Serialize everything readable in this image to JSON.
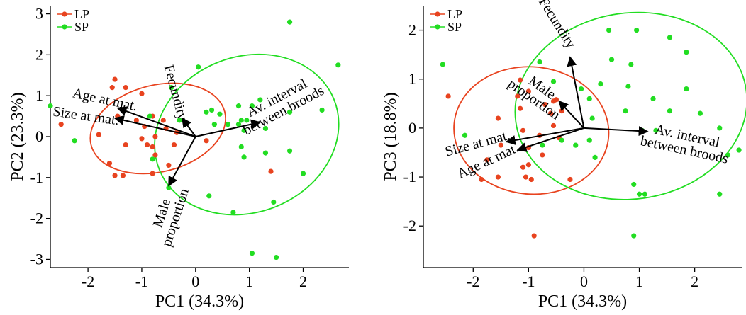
{
  "chart_data": [
    {
      "type": "scatter",
      "title": "",
      "xlabel": "PC1 (34.3%)",
      "ylabel": "PC2 (23.3%)",
      "xlim": [
        -2.7,
        2.85
      ],
      "ylim": [
        -3.2,
        3.2
      ],
      "xticks": [
        -2,
        -1,
        0,
        1,
        2
      ],
      "yticks": [
        -3,
        -2,
        -1,
        0,
        1,
        2,
        3
      ],
      "legend_position": "top-left",
      "series": [
        {
          "name": "LP",
          "color": "#e8431f",
          "points": [
            [
              -2.5,
              0.3
            ],
            [
              -1.5,
              1.4
            ],
            [
              -1.55,
              1.2
            ],
            [
              -1.3,
              1.2
            ],
            [
              -1.0,
              1.05
            ],
            [
              -0.8,
              0.5
            ],
            [
              -1.45,
              0.5
            ],
            [
              -1.1,
              0.4
            ],
            [
              -0.95,
              0.25
            ],
            [
              -1.8,
              0.05
            ],
            [
              -0.6,
              0.4
            ],
            [
              -0.55,
              0.2
            ],
            [
              -0.75,
              0.0
            ],
            [
              -1.0,
              -0.05
            ],
            [
              -0.9,
              -0.2
            ],
            [
              -1.3,
              -0.2
            ],
            [
              -0.8,
              -0.25
            ],
            [
              -0.4,
              -0.2
            ],
            [
              -0.35,
              0.1
            ],
            [
              0.2,
              -0.1
            ],
            [
              -0.5,
              -0.7
            ],
            [
              -1.5,
              -0.95
            ],
            [
              -1.35,
              -0.95
            ],
            [
              -0.8,
              -0.9
            ],
            [
              1.4,
              -0.85
            ],
            [
              -0.75,
              -0.45
            ],
            [
              -1.6,
              -0.65
            ]
          ]
        },
        {
          "name": "SP",
          "color": "#22dd22",
          "points": [
            [
              -2.7,
              0.75
            ],
            [
              -2.25,
              -0.1
            ],
            [
              -0.85,
              0.5
            ],
            [
              -0.8,
              -0.55
            ],
            [
              -0.45,
              1.2
            ],
            [
              -0.3,
              0.4
            ],
            [
              0.05,
              1.7
            ],
            [
              0.2,
              0.6
            ],
            [
              0.3,
              0.65
            ],
            [
              0.35,
              0.3
            ],
            [
              0.45,
              0.55
            ],
            [
              0.6,
              0.3
            ],
            [
              0.8,
              0.3
            ],
            [
              0.85,
              0.4
            ],
            [
              0.9,
              0.15
            ],
            [
              0.95,
              0.4
            ],
            [
              0.85,
              -0.25
            ],
            [
              0.9,
              -0.5
            ],
            [
              1.3,
              -0.4
            ],
            [
              0.8,
              0.75
            ],
            [
              1.05,
              0.75
            ],
            [
              1.3,
              0.2
            ],
            [
              1.75,
              0.6
            ],
            [
              1.75,
              2.8
            ],
            [
              2.35,
              0.65
            ],
            [
              2.65,
              1.75
            ],
            [
              1.75,
              -0.35
            ],
            [
              2.0,
              -0.9
            ],
            [
              1.45,
              -1.6
            ],
            [
              0.25,
              -1.45
            ],
            [
              -0.5,
              -1.25
            ],
            [
              0.7,
              -1.85
            ],
            [
              1.05,
              -2.85
            ],
            [
              1.5,
              -2.95
            ],
            [
              1.2,
              0.9
            ]
          ]
        }
      ],
      "ellipses": [
        {
          "series": "LP",
          "color": "#e8431f",
          "center": [
            -0.7,
            0.2
          ],
          "rx": 1.28,
          "ry": 1.06,
          "angle_deg": -14
        },
        {
          "series": "SP",
          "color": "#22dd22",
          "center": [
            0.95,
            0.05
          ],
          "rx": 1.75,
          "ry": 1.9,
          "angle_deg": -22
        }
      ],
      "arrows": [
        {
          "label": [
            "Fecundity"
          ],
          "to": [
            -0.25,
            0.45
          ],
          "label_at": [
            -0.45,
            1.05
          ],
          "label_rotate": 75
        },
        {
          "label": [
            "Av. interval",
            "between broods"
          ],
          "to": [
            1.2,
            0.35
          ],
          "label_at": [
            1.55,
            0.85
          ],
          "label_rotate": -28
        },
        {
          "label": [
            "Age at mat."
          ],
          "to": [
            -1.45,
            0.7
          ],
          "label_at": [
            -1.7,
            0.8
          ],
          "label_rotate": 12
        },
        {
          "label": [
            "Size at mat."
          ],
          "to": [
            -1.5,
            0.45
          ],
          "label_at": [
            -2.05,
            0.4
          ],
          "label_rotate": 8
        },
        {
          "label": [
            "Male",
            "proportion"
          ],
          "to": [
            -0.5,
            -1.2
          ],
          "label_at": [
            -0.55,
            -1.9
          ],
          "label_rotate": -72
        }
      ],
      "origin": [
        0,
        0
      ]
    },
    {
      "type": "scatter",
      "title": "",
      "xlabel": "PC1 (34.3%)",
      "ylabel": "PC3 (18.8%)",
      "xlim": [
        -2.9,
        2.85
      ],
      "ylim": [
        -2.85,
        2.5
      ],
      "xticks": [
        -2,
        -1,
        0,
        1,
        2
      ],
      "yticks": [
        -2,
        -1,
        0,
        1,
        2
      ],
      "legend_position": "top-left",
      "series": [
        {
          "name": "LP",
          "color": "#e8431f",
          "points": [
            [
              -2.45,
              0.65
            ],
            [
              -1.15,
              0.98
            ],
            [
              -1.0,
              0.75
            ],
            [
              -1.2,
              0.65
            ],
            [
              -1.15,
              0.4
            ],
            [
              -0.7,
              0.48
            ],
            [
              -0.5,
              0.58
            ],
            [
              -0.55,
              0.55
            ],
            [
              -0.4,
              0.35
            ],
            [
              -0.6,
              0.3
            ],
            [
              -1.55,
              0.2
            ],
            [
              -0.55,
              0.05
            ],
            [
              -1.1,
              -0.05
            ],
            [
              -0.8,
              -0.15
            ],
            [
              -0.45,
              -0.2
            ],
            [
              -1.5,
              -0.35
            ],
            [
              -1.0,
              -0.4
            ],
            [
              -0.75,
              -0.55
            ],
            [
              -1.85,
              -1.05
            ],
            [
              -1.55,
              -1.0
            ],
            [
              -1.05,
              -1.0
            ],
            [
              -0.95,
              -1.05
            ],
            [
              -1.1,
              -0.8
            ],
            [
              -1.75,
              -0.65
            ],
            [
              -0.25,
              -1.05
            ],
            [
              -0.9,
              -2.2
            ],
            [
              -1.0,
              -0.75
            ]
          ]
        },
        {
          "name": "SP",
          "color": "#22dd22",
          "points": [
            [
              -2.55,
              1.3
            ],
            [
              -2.15,
              -0.15
            ],
            [
              -0.8,
              1.35
            ],
            [
              -0.55,
              0.95
            ],
            [
              -0.05,
              0.8
            ],
            [
              0.1,
              0.6
            ],
            [
              0.15,
              0.2
            ],
            [
              0.5,
              1.4
            ],
            [
              0.45,
              2.0
            ],
            [
              0.3,
              0.9
            ],
            [
              0.85,
              1.3
            ],
            [
              0.8,
              0.85
            ],
            [
              0.75,
              0.35
            ],
            [
              0.95,
              2.0
            ],
            [
              1.25,
              0.6
            ],
            [
              1.55,
              1.85
            ],
            [
              1.55,
              0.35
            ],
            [
              1.85,
              1.55
            ],
            [
              1.85,
              0.8
            ],
            [
              2.1,
              0.3
            ],
            [
              2.45,
              0.0
            ],
            [
              2.6,
              -0.55
            ],
            [
              2.8,
              -0.45
            ],
            [
              2.45,
              -1.35
            ],
            [
              1.3,
              -0.05
            ],
            [
              1.05,
              -0.05
            ],
            [
              0.9,
              -1.15
            ],
            [
              1.0,
              -1.35
            ],
            [
              1.1,
              -1.35
            ],
            [
              0.9,
              -2.2
            ],
            [
              -0.75,
              -0.35
            ],
            [
              -0.4,
              -0.25
            ],
            [
              0.1,
              -0.25
            ],
            [
              -0.15,
              -0.35
            ],
            [
              0.2,
              -0.6
            ]
          ]
        }
      ],
      "ellipses": [
        {
          "series": "LP",
          "color": "#e8431f",
          "center": [
            -0.95,
            -0.05
          ],
          "rx": 1.4,
          "ry": 1.3,
          "angle_deg": 5
        },
        {
          "series": "SP",
          "color": "#22dd22",
          "center": [
            0.85,
            0.45
          ],
          "rx": 2.1,
          "ry": 1.9,
          "angle_deg": -8
        }
      ],
      "arrows": [
        {
          "label": [
            "Fecundity"
          ],
          "to": [
            -0.25,
            1.45
          ],
          "label_at": [
            -0.55,
            2.1
          ],
          "label_rotate": 58
        },
        {
          "label": [
            "Av. interval",
            "between broods"
          ],
          "to": [
            1.15,
            -0.07
          ],
          "label_at": [
            1.85,
            -0.25
          ],
          "label_rotate": 12
        },
        {
          "label": [
            "Male",
            "proportion"
          ],
          "to": [
            -0.45,
            0.55
          ],
          "label_at": [
            -0.8,
            0.75
          ],
          "label_rotate": 35
        },
        {
          "label": [
            "Size at mat."
          ],
          "to": [
            -1.4,
            -0.28
          ],
          "label_at": [
            -1.9,
            -0.4
          ],
          "label_rotate": -15
        },
        {
          "label": [
            "Age at mat."
          ],
          "to": [
            -1.2,
            -0.45
          ],
          "label_at": [
            -1.7,
            -0.75
          ],
          "label_rotate": -25
        }
      ],
      "origin": [
        0,
        0
      ]
    }
  ]
}
